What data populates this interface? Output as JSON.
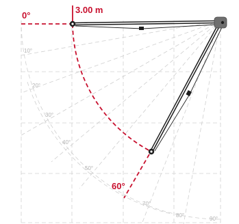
{
  "diagram": {
    "labels": {
      "zero_angle": "0°",
      "extension": "3.00 m",
      "sixty_angle": "60°"
    },
    "scale_angles": [
      "10°",
      "20°",
      "30°",
      "40°",
      "50°",
      "70°",
      "80°",
      "90°"
    ],
    "colors": {
      "accent": "#c8102e",
      "arm": "#1e1e1e",
      "grid": "#d2d2d2",
      "mount": "#6f6f6f"
    },
    "arm_positions_deg": [
      0,
      60
    ]
  }
}
